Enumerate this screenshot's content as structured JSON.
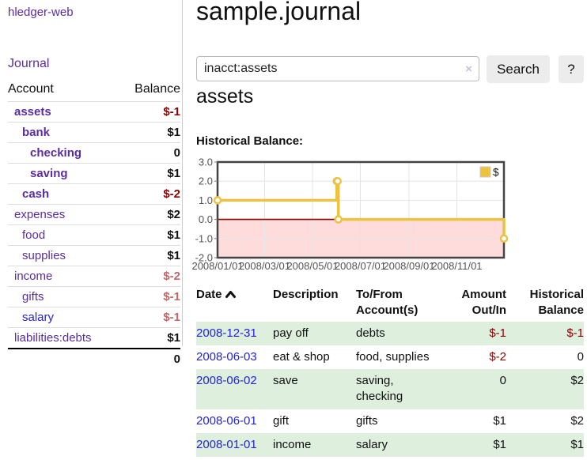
{
  "sidebar": {
    "app_title": "hledger-web",
    "journal_link": "Journal",
    "table": {
      "account_header": "Account",
      "balance_header": "Balance",
      "rows": [
        {
          "account": "assets",
          "balance": "$-1",
          "depth": 1,
          "bold": true,
          "tone": "neg-strong"
        },
        {
          "account": "bank",
          "balance": "$1",
          "depth": 2,
          "bold": true,
          "tone": ""
        },
        {
          "account": "checking",
          "balance": "0",
          "depth": 3,
          "bold": true,
          "tone": ""
        },
        {
          "account": "saving",
          "balance": "$1",
          "depth": 3,
          "bold": true,
          "tone": ""
        },
        {
          "account": "cash",
          "balance": "$-2",
          "depth": 2,
          "bold": true,
          "tone": "neg-strong"
        },
        {
          "account": "expenses",
          "balance": "$2",
          "depth": 1,
          "bold": false,
          "tone": ""
        },
        {
          "account": "food",
          "balance": "$1",
          "depth": 2,
          "bold": false,
          "tone": ""
        },
        {
          "account": "supplies",
          "balance": "$1",
          "depth": 2,
          "bold": false,
          "tone": ""
        },
        {
          "account": "income",
          "balance": "$-2",
          "depth": 1,
          "bold": false,
          "tone": "neg-soft"
        },
        {
          "account": "gifts",
          "balance": "$-1",
          "depth": 2,
          "bold": false,
          "tone": "neg-soft"
        },
        {
          "account": "salary",
          "balance": "$-1",
          "depth": 2,
          "bold": false,
          "tone": "neg-soft",
          "link": "new"
        },
        {
          "account": "liabilities:debts",
          "balance": "$1",
          "depth": 1,
          "bold": false,
          "tone": ""
        }
      ],
      "total": "0"
    }
  },
  "main": {
    "title": "sample.journal",
    "search": {
      "value": "inacct:assets",
      "clear_icon": "×",
      "search_label": "Search",
      "help_label": "?"
    },
    "account_heading": "assets",
    "chart_label": "Historical Balance:"
  },
  "chart_data": {
    "type": "line",
    "title": "Historical Balance",
    "step": true,
    "x_range": [
      "2008-01-01",
      "2008-12-31"
    ],
    "ylim": [
      -2,
      3
    ],
    "yticks": [
      "3.0",
      "2.0",
      "1.0",
      "0.0",
      "-1.0",
      "-2.0"
    ],
    "xticks": [
      "2008/01/01",
      "2008/03/01",
      "2008/05/01",
      "2008/07/01",
      "2008/09/01",
      "2008/11/01"
    ],
    "series": [
      {
        "name": "$",
        "color": "#edc240",
        "points": [
          {
            "x": "2008-01-01",
            "y": 1
          },
          {
            "x": "2008-06-01",
            "y": 2
          },
          {
            "x": "2008-06-02",
            "y": 2
          },
          {
            "x": "2008-06-03",
            "y": 0
          },
          {
            "x": "2008-12-31",
            "y": -1
          }
        ]
      }
    ],
    "legend": {
      "label": "$",
      "position": "top-right"
    },
    "grid": true,
    "negative_region_color": "#ffdcdc",
    "zero_line_color": "#8b0000",
    "border_color": "#444444",
    "grid_color": "#e4e4e4",
    "axis_label_color": "#545454"
  },
  "register": {
    "headers": [
      "Date",
      "Description",
      "To/From Account(s)",
      "Amount Out/In",
      "Historical Balance"
    ],
    "sort": "ascending",
    "rows": [
      {
        "date": "2008-12-31",
        "description": "pay off",
        "accounts": "debts",
        "amount": "$-1",
        "amount_negative": true,
        "balance": "$-1",
        "balance_negative": true
      },
      {
        "date": "2008-06-03",
        "description": "eat & shop",
        "accounts": "food, supplies",
        "amount": "$-2",
        "amount_negative": true,
        "balance": "0",
        "balance_negative": false
      },
      {
        "date": "2008-06-02",
        "description": "save",
        "accounts": "saving, checking",
        "amount": "0",
        "amount_negative": false,
        "balance": "$2",
        "balance_negative": false
      },
      {
        "date": "2008-06-01",
        "description": "gift",
        "accounts": "gifts",
        "amount": "$1",
        "amount_negative": false,
        "balance": "$2",
        "balance_negative": false
      },
      {
        "date": "2008-01-01",
        "description": "income",
        "accounts": "salary",
        "amount": "$1",
        "amount_negative": false,
        "balance": "$1",
        "balance_negative": false
      }
    ]
  },
  "colors": {
    "link_purple": "#5a2da0",
    "link_blue": "#2222dd",
    "negative_strong": "#8b0000",
    "negative_soft": "#c06868",
    "row_shade_green": "#deefde",
    "series_yellow": "#edc240"
  }
}
